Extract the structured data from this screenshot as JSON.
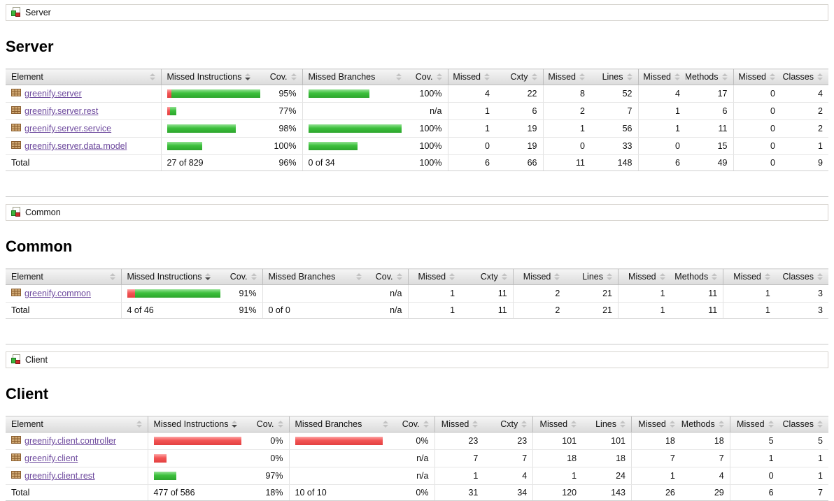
{
  "columns": [
    "Element",
    "Missed Instructions",
    "Cov.",
    "Missed Branches",
    "Cov.",
    "Missed",
    "Cxty",
    "Missed",
    "Lines",
    "Missed",
    "Methods",
    "Missed",
    "Classes"
  ],
  "sort": {
    "active_column": "Missed Instructions",
    "direction": "desc"
  },
  "colors": {
    "covered_bar": "#3cbf3c",
    "missed_bar": "#f25454",
    "link": "#6e4a9e"
  },
  "sections": [
    {
      "breadcrumb": "Server",
      "title": "Server",
      "rows": [
        {
          "name": "greenify.server",
          "instr_bar": [
            7,
            130
          ],
          "instr_cov": "95%",
          "branch_bar": [
            0,
            87
          ],
          "branch_cov": "100%",
          "nums": [
            "4",
            "22",
            "8",
            "52",
            "4",
            "17",
            "0",
            "4"
          ]
        },
        {
          "name": "greenify.server.rest",
          "instr_bar": [
            4,
            9
          ],
          "instr_cov": "77%",
          "branch_bar": null,
          "branch_cov": "n/a",
          "nums": [
            "1",
            "6",
            "2",
            "7",
            "1",
            "6",
            "0",
            "2"
          ]
        },
        {
          "name": "greenify.server.service",
          "instr_bar": [
            0,
            98
          ],
          "instr_cov": "98%",
          "branch_bar": [
            0,
            137
          ],
          "branch_cov": "100%",
          "nums": [
            "1",
            "19",
            "1",
            "56",
            "1",
            "11",
            "0",
            "2"
          ]
        },
        {
          "name": "greenify.server.data.model",
          "instr_bar": [
            0,
            50
          ],
          "instr_cov": "100%",
          "branch_bar": [
            0,
            70
          ],
          "branch_cov": "100%",
          "nums": [
            "0",
            "19",
            "0",
            "33",
            "0",
            "15",
            "0",
            "1"
          ]
        }
      ],
      "total": {
        "label": "Total",
        "instr": "27 of 829",
        "instr_cov": "96%",
        "branch": "0 of 34",
        "branch_cov": "100%",
        "nums": [
          "6",
          "66",
          "11",
          "148",
          "6",
          "49",
          "0",
          "9"
        ]
      }
    },
    {
      "breadcrumb": "Common",
      "title": "Common",
      "rows": [
        {
          "name": "greenify.common",
          "instr_bar": [
            13,
            137
          ],
          "instr_cov": "91%",
          "branch_bar": null,
          "branch_cov": "n/a",
          "nums": [
            "1",
            "11",
            "2",
            "21",
            "1",
            "11",
            "1",
            "3"
          ]
        }
      ],
      "total": {
        "label": "Total",
        "instr": "4 of 46",
        "instr_cov": "91%",
        "branch": "0 of 0",
        "branch_cov": "n/a",
        "nums": [
          "1",
          "11",
          "2",
          "21",
          "1",
          "11",
          "1",
          "3"
        ]
      }
    },
    {
      "breadcrumb": "Client",
      "title": "Client",
      "rows": [
        {
          "name": "greenify.client.controller",
          "instr_bar": [
            125,
            0
          ],
          "instr_cov": "0%",
          "branch_bar": [
            125,
            0
          ],
          "branch_cov": "0%",
          "nums": [
            "23",
            "23",
            "101",
            "101",
            "18",
            "18",
            "5",
            "5"
          ]
        },
        {
          "name": "greenify.client",
          "instr_bar": [
            18,
            0
          ],
          "instr_cov": "0%",
          "branch_bar": null,
          "branch_cov": "n/a",
          "nums": [
            "7",
            "7",
            "18",
            "18",
            "7",
            "7",
            "1",
            "1"
          ]
        },
        {
          "name": "greenify.client.rest",
          "instr_bar": [
            0,
            32
          ],
          "instr_cov": "97%",
          "branch_bar": null,
          "branch_cov": "n/a",
          "nums": [
            "1",
            "4",
            "1",
            "24",
            "1",
            "4",
            "0",
            "1"
          ]
        }
      ],
      "total": {
        "label": "Total",
        "instr": "477 of 586",
        "instr_cov": "18%",
        "branch": "10 of 10",
        "branch_cov": "0%",
        "nums": [
          "31",
          "34",
          "120",
          "143",
          "26",
          "29",
          "6",
          "7"
        ]
      }
    }
  ]
}
